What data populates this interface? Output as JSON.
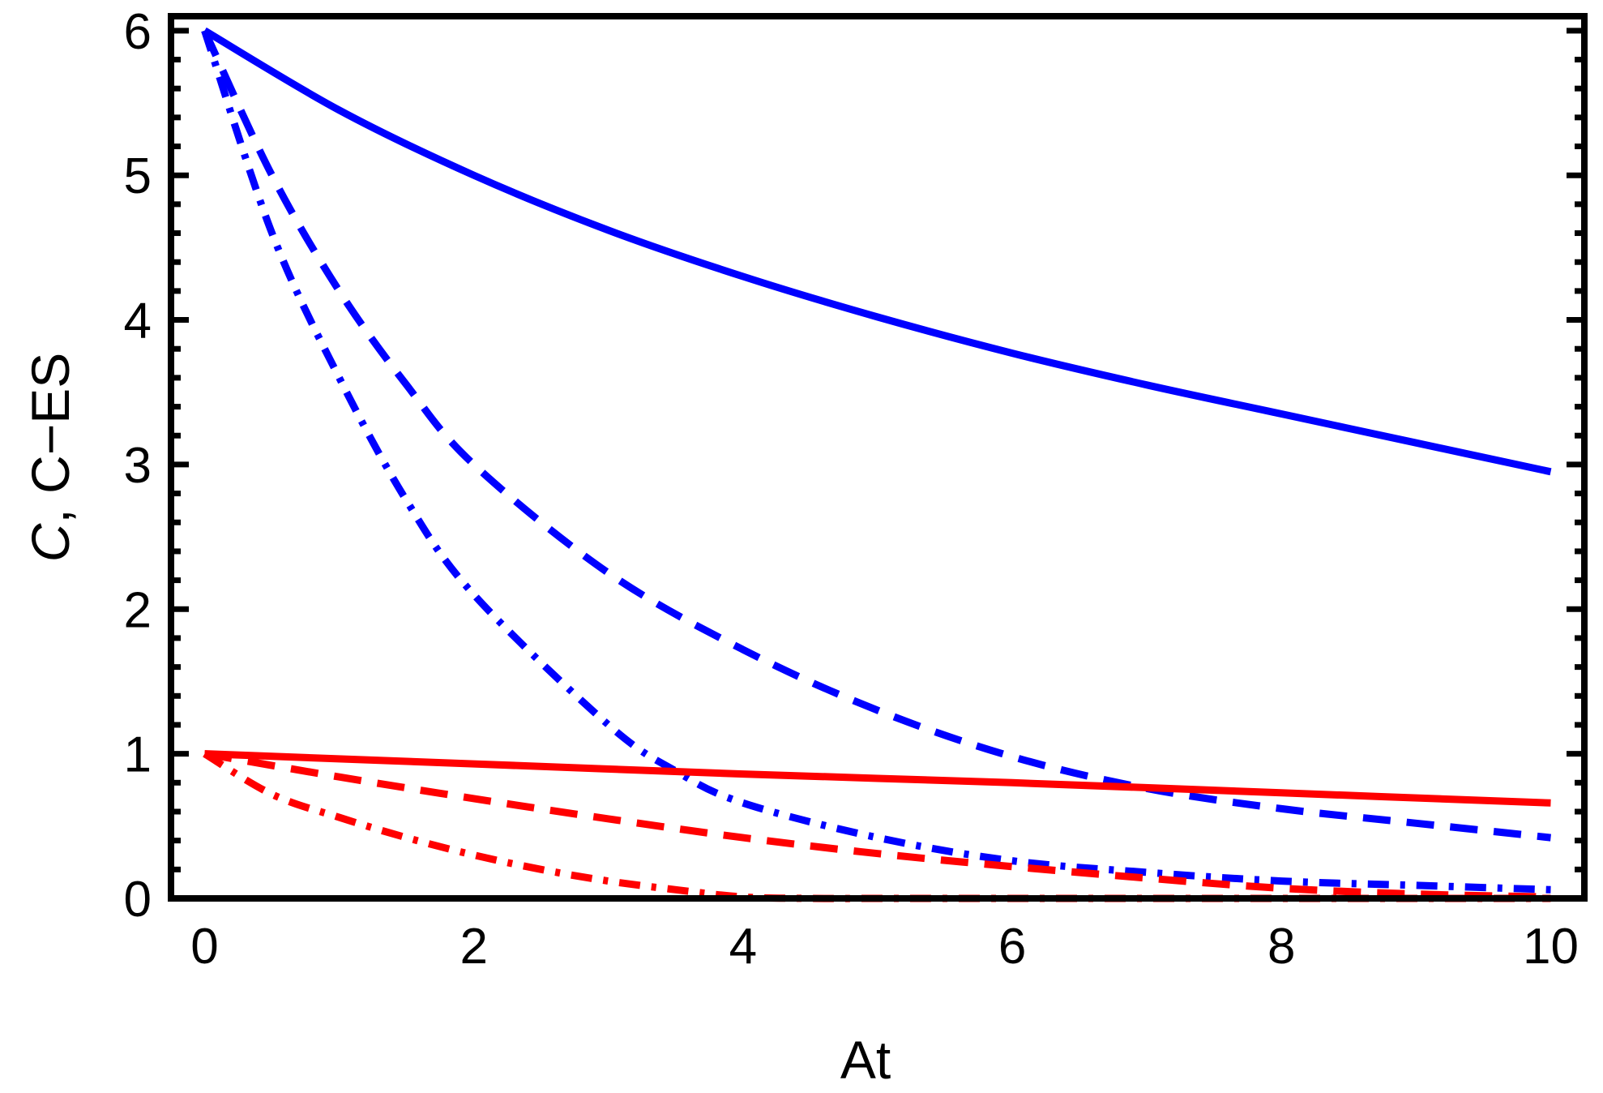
{
  "chart_data": {
    "type": "line",
    "title": "",
    "xlabel": "At",
    "ylabel_parts": [
      "C",
      ",  C−ES"
    ],
    "xlim": [
      -0.25,
      10.25
    ],
    "ylim": [
      0,
      6.1
    ],
    "xticks": [
      0,
      2,
      4,
      6,
      8,
      10
    ],
    "xtick_labels": [
      "0",
      "2",
      "4",
      "6",
      "8",
      "10"
    ],
    "yticks": [
      0,
      1,
      2,
      3,
      4,
      5,
      6
    ],
    "ytick_labels": [
      "0",
      "1",
      "2",
      "3",
      "4",
      "5",
      "6"
    ],
    "grid": false,
    "legend": "none",
    "series": [
      {
        "color": "#0000ff",
        "style": "solid",
        "x": [
          0,
          1,
          2,
          3,
          4,
          5,
          6,
          7,
          8,
          9,
          10
        ],
        "y": [
          6.0,
          5.45,
          5.0,
          4.62,
          4.3,
          4.02,
          3.77,
          3.55,
          3.35,
          3.15,
          2.95
        ]
      },
      {
        "color": "#0000ff",
        "style": "dashed",
        "x": [
          0,
          0.5,
          1,
          1.5,
          2,
          3,
          4,
          5,
          6,
          7,
          8,
          9,
          10
        ],
        "y": [
          6.0,
          5.0,
          4.2,
          3.55,
          3.0,
          2.25,
          1.72,
          1.3,
          0.98,
          0.76,
          0.62,
          0.52,
          0.42
        ]
      },
      {
        "color": "#0000ff",
        "style": "dash-dot",
        "x": [
          0,
          0.5,
          1,
          1.5,
          2,
          3,
          3.5,
          4,
          5,
          6,
          7,
          8,
          9,
          10
        ],
        "y": [
          6.0,
          4.6,
          3.6,
          2.75,
          2.1,
          1.2,
          0.88,
          0.66,
          0.42,
          0.26,
          0.18,
          0.12,
          0.09,
          0.06
        ]
      },
      {
        "color": "#ff0000",
        "style": "solid",
        "x": [
          0,
          2,
          4,
          6,
          8,
          10
        ],
        "y": [
          1.0,
          0.93,
          0.86,
          0.8,
          0.73,
          0.66
        ]
      },
      {
        "color": "#ff0000",
        "style": "dashed",
        "x": [
          0,
          1,
          2,
          3,
          4,
          5,
          6,
          7,
          8,
          9,
          10
        ],
        "y": [
          1.0,
          0.84,
          0.69,
          0.55,
          0.42,
          0.31,
          0.22,
          0.14,
          0.07,
          0.03,
          0.01
        ]
      },
      {
        "color": "#ff0000",
        "style": "dash-dot",
        "x": [
          0,
          0.5,
          1,
          1.5,
          2,
          2.5,
          3,
          3.5,
          4,
          4.5,
          5,
          6,
          7,
          8,
          9,
          10
        ],
        "y": [
          1.0,
          0.72,
          0.56,
          0.42,
          0.3,
          0.2,
          0.12,
          0.06,
          0.01,
          0.0,
          0.0,
          0.0,
          0.0,
          0.0,
          0.0,
          0.0
        ]
      }
    ]
  }
}
